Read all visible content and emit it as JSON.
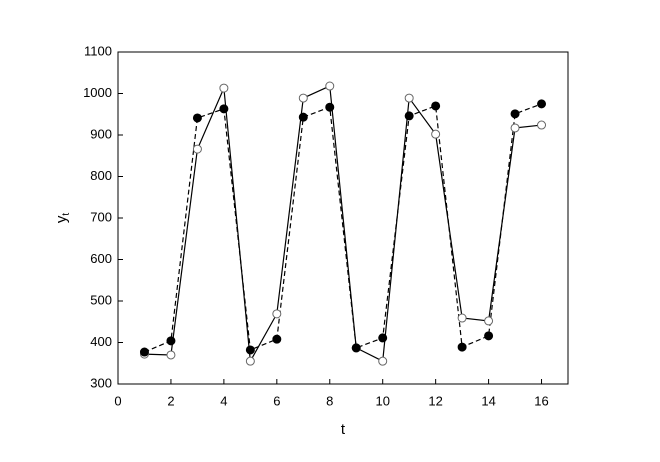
{
  "chart_data": {
    "type": "line",
    "x_label": "t",
    "y_label": "y",
    "y_label_subscript": "t",
    "x": [
      1,
      2,
      3,
      4,
      5,
      6,
      7,
      8,
      9,
      10,
      11,
      12,
      13,
      14,
      15,
      16
    ],
    "series": [
      {
        "color": "#000000",
        "linestyle": "solid",
        "marker": "open",
        "values": [
          372,
          370,
          866,
          1013,
          355,
          469,
          989,
          1018,
          387,
          355,
          989,
          902,
          459,
          452,
          917,
          924
        ]
      },
      {
        "color": "#000000",
        "linestyle": "dashed",
        "marker": "filled",
        "values": [
          377,
          404,
          941,
          963,
          382,
          408,
          943,
          967,
          387,
          411,
          946,
          970,
          389,
          416,
          951,
          975
        ]
      }
    ],
    "xlim": [
      0,
      17
    ],
    "xticks": [
      0,
      2,
      4,
      6,
      8,
      10,
      12,
      14,
      16
    ],
    "ylim": [
      300,
      1100
    ],
    "yticks": [
      300,
      400,
      500,
      600,
      700,
      800,
      900,
      1000,
      1100
    ],
    "grid": false
  }
}
